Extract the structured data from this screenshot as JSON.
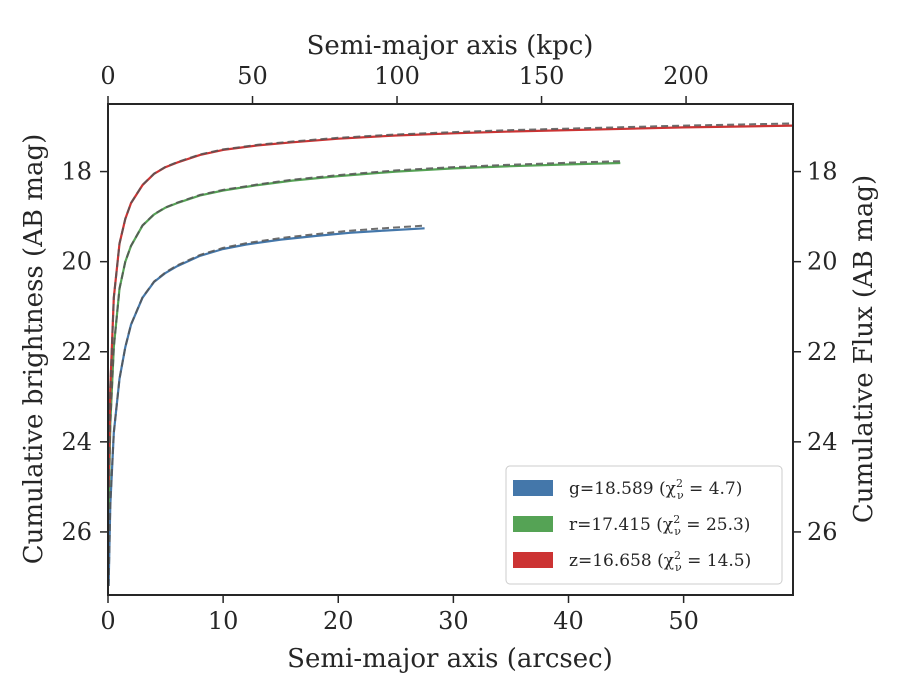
{
  "chart_data": {
    "type": "line",
    "xlabel": "Semi-major axis (arcsec)",
    "ylabel": "Cumulative brightness (AB mag)",
    "x2label": "Semi-major axis (kpc)",
    "y2label": "Cumulative Flux (AB mag)",
    "xlim": [
      0,
      59.5
    ],
    "ylim": [
      27.4,
      16.5
    ],
    "y_inverted": true,
    "x2lim": [
      0,
      237
    ],
    "xticks": [
      "0",
      "10",
      "20",
      "30",
      "40",
      "50"
    ],
    "xtick_values": [
      0,
      10,
      20,
      30,
      40,
      50
    ],
    "x2ticks": [
      "0",
      "50",
      "100",
      "150",
      "200"
    ],
    "x2tick_values": [
      0,
      50,
      100,
      150,
      200
    ],
    "yticks": [
      "18",
      "20",
      "22",
      "24",
      "26"
    ],
    "ytick_values": [
      18,
      20,
      22,
      24,
      26
    ],
    "grid": false,
    "legend_position": "lower-right",
    "series": [
      {
        "name": "g=18.589",
        "chi_label": "(χ",
        "chi_sub": "ν",
        "chi_sup": "2",
        "chi_value": " = 4.7)",
        "color": "#4477aa",
        "x": [
          0.05,
          0.2,
          0.5,
          1,
          1.5,
          2,
          3,
          4,
          5,
          6,
          8,
          10,
          12,
          15,
          18,
          21,
          24,
          27.5
        ],
        "y": [
          27.2,
          25.4,
          23.8,
          22.6,
          21.9,
          21.4,
          20.8,
          20.45,
          20.25,
          20.1,
          19.87,
          19.72,
          19.62,
          19.51,
          19.43,
          19.36,
          19.31,
          19.26
        ],
        "fit_y_end": 19.2
      },
      {
        "name": "r=17.415",
        "chi_label": "(χ",
        "chi_sub": "ν",
        "chi_sup": "2",
        "chi_value": " = 25.3)",
        "color": "#55a355",
        "x": [
          0.05,
          0.2,
          0.5,
          1,
          1.5,
          2,
          3,
          4,
          5,
          6,
          8,
          10,
          13,
          16,
          20,
          25,
          30,
          35,
          40,
          44.5
        ],
        "y": [
          25.5,
          23.6,
          21.9,
          20.6,
          20.0,
          19.65,
          19.2,
          18.95,
          18.8,
          18.7,
          18.53,
          18.42,
          18.3,
          18.2,
          18.1,
          18.0,
          17.93,
          17.88,
          17.84,
          17.81
        ],
        "fit_y_end": 17.77
      },
      {
        "name": "z=16.658",
        "chi_label": "(χ",
        "chi_sub": "ν",
        "chi_sup": "2",
        "chi_value": " = 14.5)",
        "color": "#cc3333",
        "x": [
          0.05,
          0.2,
          0.5,
          1,
          1.5,
          2,
          3,
          4,
          5,
          6,
          8,
          10,
          13,
          16,
          20,
          25,
          30,
          35,
          40,
          45,
          50,
          55,
          59.5
        ],
        "y": [
          25.0,
          22.8,
          20.8,
          19.6,
          19.05,
          18.7,
          18.3,
          18.05,
          17.9,
          17.8,
          17.63,
          17.52,
          17.42,
          17.35,
          17.27,
          17.2,
          17.15,
          17.11,
          17.08,
          17.05,
          17.02,
          17.0,
          16.98
        ],
        "fit_y_end": 16.93
      }
    ]
  }
}
